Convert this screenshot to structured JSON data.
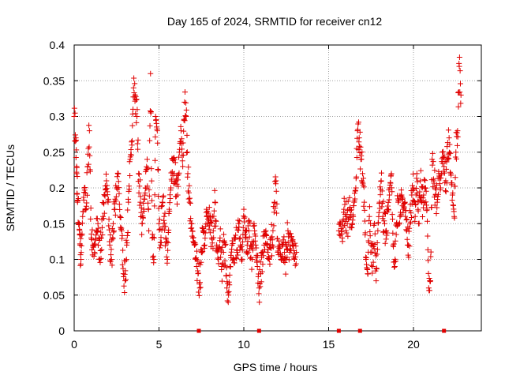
{
  "chart_data": {
    "type": "scatter",
    "title": "Day 165 of 2024, SRMTID for receiver cn12",
    "xlabel": "GPS time / hours",
    "ylabel": "SRMTID / TECUs",
    "xlim": [
      0,
      24
    ],
    "ylim": [
      0,
      0.4
    ],
    "xticks": [
      0,
      5,
      10,
      15,
      20
    ],
    "yticks": [
      0,
      0.05,
      0.1,
      0.15,
      0.2,
      0.25,
      0.3,
      0.35,
      0.4
    ],
    "xtick_labels": [
      "0",
      "5",
      "10",
      "15",
      "20"
    ],
    "ytick_labels": [
      "0",
      "0.05",
      "0.1",
      "0.15",
      "0.2",
      "0.25",
      "0.3",
      "0.35",
      "0.4"
    ],
    "grid": true,
    "marker": "plus",
    "series_color": "#e00000",
    "series": [
      {
        "name": "SRMTID",
        "segments": [
          {
            "x_start": 0.0,
            "x_end": 13.1,
            "points": [
              [
                0.0,
                0.3
              ],
              [
                0.1,
                0.27
              ],
              [
                0.15,
                0.22
              ],
              [
                0.2,
                0.18
              ],
              [
                0.3,
                0.15
              ],
              [
                0.35,
                0.12
              ],
              [
                0.4,
                0.1
              ],
              [
                0.5,
                0.16
              ],
              [
                0.6,
                0.2
              ],
              [
                0.7,
                0.17
              ],
              [
                0.8,
                0.23
              ],
              [
                0.9,
                0.28
              ],
              [
                1.0,
                0.13
              ],
              [
                1.1,
                0.12
              ],
              [
                1.2,
                0.11
              ],
              [
                1.3,
                0.14
              ],
              [
                1.4,
                0.15
              ],
              [
                1.5,
                0.1
              ],
              [
                1.6,
                0.13
              ],
              [
                1.7,
                0.16
              ],
              [
                1.8,
                0.19
              ],
              [
                1.9,
                0.21
              ],
              [
                2.0,
                0.18
              ],
              [
                2.1,
                0.12
              ],
              [
                2.2,
                0.1
              ],
              [
                2.3,
                0.15
              ],
              [
                2.4,
                0.17
              ],
              [
                2.5,
                0.2
              ],
              [
                2.6,
                0.22
              ],
              [
                2.7,
                0.16
              ],
              [
                2.8,
                0.14
              ],
              [
                2.9,
                0.08
              ],
              [
                3.0,
                0.07
              ],
              [
                3.1,
                0.12
              ],
              [
                3.2,
                0.18
              ],
              [
                3.3,
                0.24
              ],
              [
                3.4,
                0.26
              ],
              [
                3.5,
                0.34
              ],
              [
                3.6,
                0.33
              ],
              [
                3.7,
                0.3
              ],
              [
                3.8,
                0.22
              ],
              [
                3.9,
                0.18
              ],
              [
                4.0,
                0.15
              ],
              [
                4.1,
                0.17
              ],
              [
                4.2,
                0.2
              ],
              [
                4.3,
                0.24
              ],
              [
                4.4,
                0.14
              ],
              [
                4.5,
                0.36
              ],
              [
                4.6,
                0.13
              ],
              [
                4.7,
                0.1
              ],
              [
                4.8,
                0.3
              ],
              [
                4.9,
                0.28
              ],
              [
                5.0,
                0.15
              ],
              [
                5.1,
                0.12
              ],
              [
                5.2,
                0.18
              ],
              [
                5.3,
                0.16
              ],
              [
                5.4,
                0.13
              ],
              [
                5.5,
                0.1
              ],
              [
                5.6,
                0.17
              ],
              [
                5.7,
                0.2
              ],
              [
                5.8,
                0.24
              ],
              [
                5.9,
                0.22
              ],
              [
                6.0,
                0.21
              ],
              [
                6.1,
                0.19
              ],
              [
                6.2,
                0.25
              ],
              [
                6.3,
                0.28
              ],
              [
                6.4,
                0.23
              ],
              [
                6.5,
                0.32
              ],
              [
                6.6,
                0.3
              ],
              [
                6.7,
                0.22
              ],
              [
                6.8,
                0.18
              ],
              [
                6.9,
                0.15
              ],
              [
                7.0,
                0.13
              ],
              [
                7.1,
                0.12
              ],
              [
                7.2,
                0.1
              ],
              [
                7.3,
                0.08
              ],
              [
                7.4,
                0.06
              ],
              [
                7.5,
                0.11
              ],
              [
                7.6,
                0.14
              ],
              [
                7.7,
                0.12
              ],
              [
                7.8,
                0.17
              ],
              [
                7.9,
                0.15
              ],
              [
                8.0,
                0.16
              ],
              [
                8.1,
                0.13
              ],
              [
                8.2,
                0.14
              ],
              [
                8.3,
                0.18
              ],
              [
                8.4,
                0.12
              ],
              [
                8.5,
                0.1
              ],
              [
                8.6,
                0.13
              ],
              [
                8.7,
                0.09
              ],
              [
                8.8,
                0.11
              ],
              [
                8.9,
                0.12
              ],
              [
                9.0,
                0.06
              ],
              [
                9.1,
                0.05
              ],
              [
                9.2,
                0.09
              ],
              [
                9.3,
                0.12
              ],
              [
                9.4,
                0.1
              ],
              [
                9.5,
                0.13
              ],
              [
                9.6,
                0.11
              ],
              [
                9.7,
                0.15
              ],
              [
                9.8,
                0.12
              ],
              [
                9.9,
                0.1
              ],
              [
                10.0,
                0.17
              ],
              [
                10.1,
                0.13
              ],
              [
                10.2,
                0.12
              ],
              [
                10.3,
                0.14
              ],
              [
                10.4,
                0.12
              ],
              [
                10.5,
                0.1
              ],
              [
                10.6,
                0.15
              ],
              [
                10.7,
                0.12
              ],
              [
                10.8,
                0.09
              ],
              [
                10.9,
                0.06
              ],
              [
                11.0,
                0.08
              ],
              [
                11.1,
                0.11
              ],
              [
                11.2,
                0.12
              ],
              [
                11.3,
                0.14
              ],
              [
                11.4,
                0.11
              ],
              [
                11.5,
                0.1
              ],
              [
                11.6,
                0.13
              ],
              [
                11.7,
                0.12
              ],
              [
                11.8,
                0.18
              ],
              [
                11.9,
                0.21
              ],
              [
                12.0,
                0.11
              ],
              [
                12.1,
                0.12
              ],
              [
                12.2,
                0.1
              ],
              [
                12.3,
                0.12
              ],
              [
                12.4,
                0.11
              ],
              [
                12.5,
                0.1
              ],
              [
                12.6,
                0.14
              ],
              [
                12.7,
                0.11
              ],
              [
                12.8,
                0.13
              ],
              [
                12.9,
                0.12
              ],
              [
                13.0,
                0.1
              ],
              [
                13.1,
                0.11
              ]
            ]
          },
          {
            "x_start": 15.6,
            "x_end": 22.8,
            "points": [
              [
                15.6,
                0.14
              ],
              [
                15.7,
                0.15
              ],
              [
                15.8,
                0.13
              ],
              [
                15.9,
                0.17
              ],
              [
                16.0,
                0.16
              ],
              [
                16.1,
                0.15
              ],
              [
                16.2,
                0.17
              ],
              [
                16.3,
                0.16
              ],
              [
                16.4,
                0.15
              ],
              [
                16.5,
                0.18
              ],
              [
                16.6,
                0.2
              ],
              [
                16.7,
                0.28
              ],
              [
                16.8,
                0.27
              ],
              [
                16.9,
                0.24
              ],
              [
                17.0,
                0.22
              ],
              [
                17.1,
                0.18
              ],
              [
                17.2,
                0.1
              ],
              [
                17.3,
                0.08
              ],
              [
                17.4,
                0.16
              ],
              [
                17.5,
                0.12
              ],
              [
                17.6,
                0.09
              ],
              [
                17.7,
                0.15
              ],
              [
                17.8,
                0.07
              ],
              [
                17.9,
                0.14
              ],
              [
                18.0,
                0.18
              ],
              [
                18.1,
                0.21
              ],
              [
                18.2,
                0.16
              ],
              [
                18.3,
                0.15
              ],
              [
                18.4,
                0.14
              ],
              [
                18.5,
                0.17
              ],
              [
                18.6,
                0.2
              ],
              [
                18.7,
                0.22
              ],
              [
                18.8,
                0.12
              ],
              [
                18.9,
                0.09
              ],
              [
                19.0,
                0.15
              ],
              [
                19.1,
                0.18
              ],
              [
                19.2,
                0.16
              ],
              [
                19.3,
                0.19
              ],
              [
                19.4,
                0.17
              ],
              [
                19.5,
                0.18
              ],
              [
                19.6,
                0.14
              ],
              [
                19.7,
                0.12
              ],
              [
                19.8,
                0.15
              ],
              [
                19.9,
                0.19
              ],
              [
                20.0,
                0.2
              ],
              [
                20.1,
                0.16
              ],
              [
                20.2,
                0.22
              ],
              [
                20.3,
                0.15
              ],
              [
                20.4,
                0.21
              ],
              [
                20.5,
                0.18
              ],
              [
                20.6,
                0.19
              ],
              [
                20.7,
                0.2
              ],
              [
                20.8,
                0.17
              ],
              [
                20.9,
                0.06
              ],
              [
                21.0,
                0.07
              ],
              [
                21.1,
                0.24
              ],
              [
                21.2,
                0.21
              ],
              [
                21.3,
                0.19
              ],
              [
                21.4,
                0.18
              ],
              [
                21.5,
                0.22
              ],
              [
                21.6,
                0.2
              ],
              [
                21.7,
                0.25
              ],
              [
                21.8,
                0.23
              ],
              [
                21.9,
                0.21
              ],
              [
                22.0,
                0.24
              ],
              [
                22.1,
                0.27
              ],
              [
                22.2,
                0.22
              ],
              [
                22.3,
                0.19
              ],
              [
                22.4,
                0.16
              ],
              [
                22.5,
                0.25
              ],
              [
                22.6,
                0.28
              ],
              [
                22.7,
                0.37
              ],
              [
                22.8,
                0.33
              ]
            ]
          }
        ]
      }
    ],
    "baseline_markers_x": [
      7.35,
      10.9,
      15.6,
      16.85,
      21.8
    ]
  }
}
